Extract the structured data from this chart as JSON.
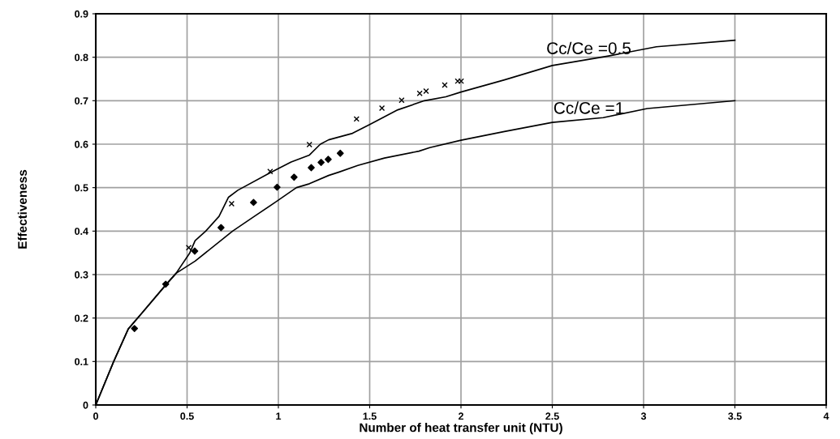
{
  "chart_data": {
    "type": "line",
    "xlabel": "Number of heat transfer unit (NTU)",
    "ylabel": "Effectiveness",
    "xlim": [
      0,
      4
    ],
    "xticks": [
      0,
      0.5,
      1,
      1.5,
      2,
      2.5,
      3,
      3.5,
      4
    ],
    "ylim": [
      0,
      0.9
    ],
    "yticks": [
      0,
      0.1,
      0.2,
      0.3,
      0.4,
      0.5,
      0.6,
      0.7,
      0.8,
      0.9
    ],
    "grid": true,
    "legend": false,
    "series": [
      {
        "name": "Cc/Ce =0.5",
        "color": "#000000",
        "marker": "none",
        "x": [
          0,
          0.098,
          0.178,
          0.25,
          0.383,
          0.44,
          0.515,
          0.544,
          0.602,
          0.675,
          0.727,
          0.778,
          0.953,
          1.07,
          1.17,
          1.23,
          1.275,
          1.406,
          1.5,
          1.654,
          1.8,
          1.917,
          2.0,
          2.238,
          2.5,
          2.808,
          3.07,
          3.5
        ],
        "values": [
          0,
          0.1,
          0.175,
          0.21,
          0.276,
          0.303,
          0.35,
          0.378,
          0.4,
          0.434,
          0.478,
          0.494,
          0.534,
          0.559,
          0.575,
          0.6,
          0.61,
          0.625,
          0.645,
          0.679,
          0.7,
          0.709,
          0.72,
          0.748,
          0.781,
          0.803,
          0.824,
          0.839
        ]
      },
      {
        "name": "Cc/Ce =1",
        "color": "#000000",
        "marker": "none",
        "x": [
          0,
          0.098,
          0.178,
          0.25,
          0.383,
          0.44,
          0.544,
          0.749,
          0.865,
          0.982,
          1.099,
          1.17,
          1.275,
          1.333,
          1.435,
          1.581,
          1.77,
          1.829,
          2.0,
          2.238,
          2.5,
          2.779,
          3.02,
          3.5
        ],
        "values": [
          0,
          0.1,
          0.175,
          0.21,
          0.276,
          0.303,
          0.331,
          0.4,
          0.433,
          0.466,
          0.5,
          0.509,
          0.528,
          0.536,
          0.551,
          0.568,
          0.584,
          0.592,
          0.609,
          0.629,
          0.65,
          0.661,
          0.682,
          0.7
        ]
      },
      {
        "type": "scatter",
        "color": "#000000",
        "marker": "diamond",
        "x": [
          0.212,
          0.383,
          0.542,
          0.686,
          0.864,
          0.993,
          1.086,
          1.18,
          1.234,
          1.273,
          1.339
        ],
        "values": [
          0.176,
          0.278,
          0.354,
          0.408,
          0.466,
          0.501,
          0.524,
          0.546,
          0.558,
          0.565,
          0.579
        ]
      },
      {
        "type": "scatter",
        "color": "#000000",
        "marker": "cross",
        "x": [
          0.509,
          0.744,
          0.955,
          1.17,
          1.428,
          1.567,
          1.675,
          1.774,
          1.809,
          1.911,
          1.982,
          2.001
        ],
        "values": [
          0.362,
          0.463,
          0.537,
          0.599,
          0.658,
          0.683,
          0.701,
          0.717,
          0.722,
          0.736,
          0.745,
          0.745
        ]
      }
    ]
  }
}
